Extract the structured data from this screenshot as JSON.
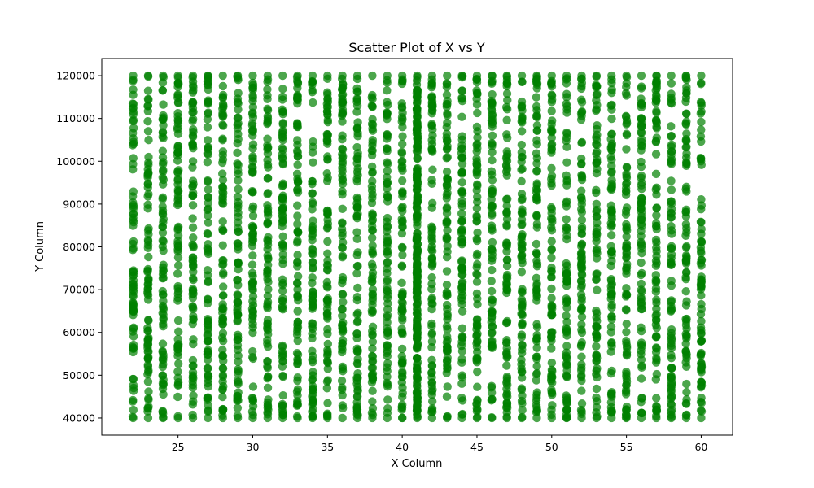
{
  "chart_data": {
    "type": "scatter",
    "title": "Scatter Plot of X vs Y",
    "xlabel": "X Column",
    "ylabel": "Y Column",
    "xlim": [
      19.9,
      62.1
    ],
    "ylim": [
      36000,
      124000
    ],
    "xticks": [
      25,
      30,
      35,
      40,
      45,
      50,
      55,
      60
    ],
    "yticks": [
      40000,
      50000,
      60000,
      70000,
      80000,
      90000,
      100000,
      110000,
      120000
    ],
    "xtick_labels": [
      "25",
      "30",
      "35",
      "40",
      "45",
      "50",
      "55",
      "60"
    ],
    "ytick_labels": [
      "40000",
      "50000",
      "60000",
      "70000",
      "80000",
      "90000",
      "100000",
      "110000",
      "120000"
    ],
    "grid": false,
    "legend": null,
    "marker_color": "#008000",
    "marker_alpha": 0.7,
    "series": [
      {
        "name": "X vs Y",
        "x_values": [
          22,
          23,
          24,
          25,
          26,
          27,
          28,
          29,
          30,
          31,
          32,
          33,
          34,
          35,
          36,
          37,
          38,
          39,
          40,
          41,
          42,
          43,
          44,
          45,
          46,
          47,
          48,
          49,
          50,
          51,
          52,
          53,
          54,
          55,
          56,
          57,
          58,
          59,
          60
        ],
        "y_range": [
          40000,
          120000
        ],
        "note": "each integer X has many points spread uniformly over the Y range; X = 41 is the densest column"
      }
    ]
  }
}
